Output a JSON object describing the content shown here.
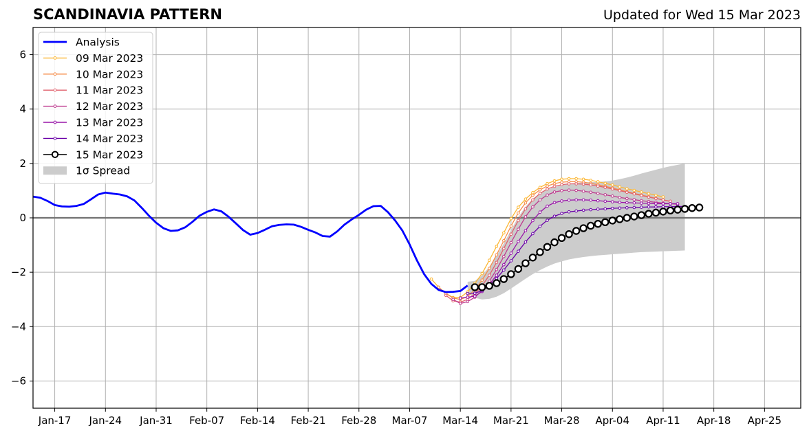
{
  "title": "SCANDINAVIA PATTERN",
  "subtitle": "Updated for Wed 15 Mar 2023",
  "chart_data": {
    "type": "line",
    "title": "SCANDINAVIA PATTERN",
    "subtitle": "Updated for Wed 15 Mar 2023",
    "xlabel": "",
    "ylabel": "",
    "x_axis": "date",
    "xlim": [
      "2023-01-14",
      "2023-04-30"
    ],
    "ylim": [
      -7,
      7
    ],
    "yticks": [
      -6,
      -4,
      -2,
      0,
      2,
      4,
      6
    ],
    "ytick_labels": [
      "−6",
      "−4",
      "−2",
      "0",
      "2",
      "4",
      "6"
    ],
    "xticks": [
      "2023-01-17",
      "2023-01-24",
      "2023-01-31",
      "2023-02-07",
      "2023-02-14",
      "2023-02-21",
      "2023-02-28",
      "2023-03-07",
      "2023-03-14",
      "2023-03-21",
      "2023-03-28",
      "2023-04-04",
      "2023-04-11",
      "2023-04-18",
      "2023-04-25"
    ],
    "xtick_labels": [
      "Jan-17",
      "Jan-24",
      "Jan-31",
      "Feb-07",
      "Feb-14",
      "Feb-21",
      "Feb-28",
      "Mar-07",
      "Mar-14",
      "Mar-21",
      "Mar-28",
      "Apr-04",
      "Apr-11",
      "Apr-18",
      "Apr-25"
    ],
    "grid": true,
    "zero_line": true,
    "legend_position": "upper-left",
    "colors": {
      "analysis": "#0000ff",
      "spread": "#cccccc",
      "f0309": "#fcb733",
      "f0310": "#f58b47",
      "f0311": "#e1606c",
      "f0312": "#be3a8e",
      "f0313": "#9815a8",
      "f0314": "#6a00a8",
      "f0315": "#000000"
    },
    "analysis": {
      "name": "Analysis",
      "x": [
        "2023-01-14",
        "2023-01-15",
        "2023-01-16",
        "2023-01-17",
        "2023-01-18",
        "2023-01-19",
        "2023-01-20",
        "2023-01-21",
        "2023-01-22",
        "2023-01-23",
        "2023-01-24",
        "2023-01-25",
        "2023-01-26",
        "2023-01-27",
        "2023-01-28",
        "2023-01-29",
        "2023-01-30",
        "2023-01-31",
        "2023-02-01",
        "2023-02-02",
        "2023-02-03",
        "2023-02-04",
        "2023-02-05",
        "2023-02-06",
        "2023-02-07",
        "2023-02-08",
        "2023-02-09",
        "2023-02-10",
        "2023-02-11",
        "2023-02-12",
        "2023-02-13",
        "2023-02-14",
        "2023-02-15",
        "2023-02-16",
        "2023-02-17",
        "2023-02-18",
        "2023-02-19",
        "2023-02-20",
        "2023-02-21",
        "2023-02-22",
        "2023-02-23",
        "2023-02-24",
        "2023-02-25",
        "2023-02-26",
        "2023-02-27",
        "2023-02-28",
        "2023-03-01",
        "2023-03-02",
        "2023-03-03",
        "2023-03-04",
        "2023-03-05",
        "2023-03-06",
        "2023-03-07",
        "2023-03-08",
        "2023-03-09",
        "2023-03-10",
        "2023-03-11",
        "2023-03-12",
        "2023-03-13",
        "2023-03-14",
        "2023-03-15"
      ],
      "y": [
        0.78,
        0.74,
        0.62,
        0.47,
        0.42,
        0.41,
        0.44,
        0.51,
        0.68,
        0.86,
        0.93,
        0.89,
        0.86,
        0.79,
        0.64,
        0.37,
        0.08,
        -0.18,
        -0.38,
        -0.48,
        -0.46,
        -0.35,
        -0.15,
        0.08,
        0.22,
        0.31,
        0.24,
        0.04,
        -0.2,
        -0.45,
        -0.62,
        -0.56,
        -0.44,
        -0.31,
        -0.26,
        -0.24,
        -0.25,
        -0.33,
        -0.44,
        -0.54,
        -0.67,
        -0.69,
        -0.5,
        -0.25,
        -0.06,
        0.11,
        0.3,
        0.43,
        0.44,
        0.21,
        -0.1,
        -0.47,
        -0.98,
        -1.56,
        -2.07,
        -2.43,
        -2.65,
        -2.73,
        -2.72,
        -2.69,
        -2.49
      ]
    },
    "spread": {
      "name": "1σ Spread",
      "x": [
        "2023-03-15",
        "2023-03-16",
        "2023-03-17",
        "2023-03-18",
        "2023-03-19",
        "2023-03-20",
        "2023-03-21",
        "2023-03-22",
        "2023-03-23",
        "2023-03-24",
        "2023-03-25",
        "2023-03-26",
        "2023-03-27",
        "2023-03-28",
        "2023-03-29",
        "2023-03-30",
        "2023-03-31",
        "2023-04-01",
        "2023-04-02",
        "2023-04-03",
        "2023-04-04",
        "2023-04-05",
        "2023-04-06",
        "2023-04-07",
        "2023-04-08",
        "2023-04-09",
        "2023-04-10",
        "2023-04-11",
        "2023-04-12",
        "2023-04-13",
        "2023-04-14"
      ],
      "upper": [
        -2.35,
        -2.32,
        -2.12,
        -1.8,
        -1.4,
        -0.94,
        -0.45,
        0.03,
        0.41,
        0.7,
        0.9,
        1.04,
        1.13,
        1.2,
        1.25,
        1.28,
        1.3,
        1.31,
        1.32,
        1.34,
        1.37,
        1.42,
        1.48,
        1.55,
        1.63,
        1.7,
        1.77,
        1.84,
        1.9,
        1.95,
        2.0
      ],
      "lower": [
        -2.78,
        -2.94,
        -3.0,
        -2.98,
        -2.9,
        -2.77,
        -2.6,
        -2.42,
        -2.24,
        -2.07,
        -1.92,
        -1.79,
        -1.68,
        -1.6,
        -1.53,
        -1.48,
        -1.44,
        -1.41,
        -1.38,
        -1.36,
        -1.34,
        -1.32,
        -1.3,
        -1.28,
        -1.26,
        -1.25,
        -1.24,
        -1.23,
        -1.22,
        -1.21,
        -1.2
      ]
    },
    "series": [
      {
        "name": "09 Mar 2023",
        "key": "f0309",
        "x": [
          "2023-03-10",
          "2023-03-11",
          "2023-03-12",
          "2023-03-13",
          "2023-03-14",
          "2023-03-15",
          "2023-03-16",
          "2023-03-17",
          "2023-03-18",
          "2023-03-19",
          "2023-03-20",
          "2023-03-21",
          "2023-03-22",
          "2023-03-23",
          "2023-03-24",
          "2023-03-25",
          "2023-03-26",
          "2023-03-27",
          "2023-03-28",
          "2023-03-29",
          "2023-03-30",
          "2023-03-31",
          "2023-04-01",
          "2023-04-02",
          "2023-04-03",
          "2023-04-04",
          "2023-04-05",
          "2023-04-06",
          "2023-04-07",
          "2023-04-08",
          "2023-04-09",
          "2023-04-10",
          "2023-04-11"
        ],
        "y": [
          -2.25,
          -2.55,
          -2.78,
          -2.93,
          -2.93,
          -2.72,
          -2.41,
          -2.05,
          -1.56,
          -1.05,
          -0.55,
          -0.03,
          0.39,
          0.69,
          0.93,
          1.12,
          1.26,
          1.36,
          1.42,
          1.44,
          1.44,
          1.42,
          1.38,
          1.33,
          1.27,
          1.21,
          1.14,
          1.07,
          1.01,
          0.95,
          0.89,
          0.83,
          0.77
        ]
      },
      {
        "name": "10 Mar 2023",
        "key": "f0310",
        "x": [
          "2023-03-11",
          "2023-03-12",
          "2023-03-13",
          "2023-03-14",
          "2023-03-15",
          "2023-03-16",
          "2023-03-17",
          "2023-03-18",
          "2023-03-19",
          "2023-03-20",
          "2023-03-21",
          "2023-03-22",
          "2023-03-23",
          "2023-03-24",
          "2023-03-25",
          "2023-03-26",
          "2023-03-27",
          "2023-03-28",
          "2023-03-29",
          "2023-03-30",
          "2023-03-31",
          "2023-04-01",
          "2023-04-02",
          "2023-04-03",
          "2023-04-04",
          "2023-04-05",
          "2023-04-06",
          "2023-04-07",
          "2023-04-08",
          "2023-04-09",
          "2023-04-10",
          "2023-04-11",
          "2023-04-12"
        ],
        "y": [
          -2.55,
          -2.78,
          -2.95,
          -3.0,
          -2.9,
          -2.64,
          -2.29,
          -1.86,
          -1.36,
          -0.84,
          -0.3,
          0.18,
          0.55,
          0.83,
          1.03,
          1.17,
          1.26,
          1.31,
          1.33,
          1.33,
          1.31,
          1.27,
          1.22,
          1.16,
          1.1,
          1.03,
          0.96,
          0.9,
          0.84,
          0.78,
          0.72,
          0.66,
          0.6
        ]
      },
      {
        "name": "11 Mar 2023",
        "key": "f0311",
        "x": [
          "2023-03-12",
          "2023-03-13",
          "2023-03-14",
          "2023-03-15",
          "2023-03-16",
          "2023-03-17",
          "2023-03-18",
          "2023-03-19",
          "2023-03-20",
          "2023-03-21",
          "2023-03-22",
          "2023-03-23",
          "2023-03-24",
          "2023-03-25",
          "2023-03-26",
          "2023-03-27",
          "2023-03-28",
          "2023-03-29",
          "2023-03-30",
          "2023-03-31",
          "2023-04-01",
          "2023-04-02",
          "2023-04-03",
          "2023-04-04",
          "2023-04-05",
          "2023-04-06",
          "2023-04-07",
          "2023-04-08",
          "2023-04-09",
          "2023-04-10",
          "2023-04-11",
          "2023-04-12"
        ],
        "y": [
          -2.85,
          -3.05,
          -3.1,
          -3.0,
          -2.79,
          -2.5,
          -2.11,
          -1.64,
          -1.13,
          -0.6,
          -0.1,
          0.33,
          0.66,
          0.9,
          1.06,
          1.16,
          1.22,
          1.25,
          1.25,
          1.24,
          1.21,
          1.17,
          1.12,
          1.06,
          1.0,
          0.94,
          0.88,
          0.82,
          0.76,
          0.71,
          0.66,
          0.61
        ]
      },
      {
        "name": "12 Mar 2023",
        "key": "f0312",
        "x": [
          "2023-03-13",
          "2023-03-14",
          "2023-03-15",
          "2023-03-16",
          "2023-03-17",
          "2023-03-18",
          "2023-03-19",
          "2023-03-20",
          "2023-03-21",
          "2023-03-22",
          "2023-03-23",
          "2023-03-24",
          "2023-03-25",
          "2023-03-26",
          "2023-03-27",
          "2023-03-28",
          "2023-03-29",
          "2023-03-30",
          "2023-03-31",
          "2023-04-01",
          "2023-04-02",
          "2023-04-03",
          "2023-04-04",
          "2023-04-05",
          "2023-04-06",
          "2023-04-07",
          "2023-04-08",
          "2023-04-09",
          "2023-04-10",
          "2023-04-11",
          "2023-04-12",
          "2023-04-13"
        ],
        "y": [
          -3.0,
          -3.15,
          -3.08,
          -2.92,
          -2.67,
          -2.33,
          -1.9,
          -1.42,
          -0.91,
          -0.42,
          0.04,
          0.4,
          0.66,
          0.84,
          0.95,
          1.0,
          1.02,
          1.01,
          0.98,
          0.94,
          0.9,
          0.85,
          0.8,
          0.75,
          0.71,
          0.67,
          0.63,
          0.6,
          0.57,
          0.54,
          0.52,
          0.5
        ]
      },
      {
        "name": "13 Mar 2023",
        "key": "f0313",
        "x": [
          "2023-03-14",
          "2023-03-15",
          "2023-03-16",
          "2023-03-17",
          "2023-03-18",
          "2023-03-19",
          "2023-03-20",
          "2023-03-21",
          "2023-03-22",
          "2023-03-23",
          "2023-03-24",
          "2023-03-25",
          "2023-03-26",
          "2023-03-27",
          "2023-03-28",
          "2023-03-29",
          "2023-03-30",
          "2023-03-31",
          "2023-04-01",
          "2023-04-02",
          "2023-04-03",
          "2023-04-04",
          "2023-04-05",
          "2023-04-06",
          "2023-04-07",
          "2023-04-08",
          "2023-04-09",
          "2023-04-10",
          "2023-04-11",
          "2023-04-12",
          "2023-04-13"
        ],
        "y": [
          -2.95,
          -2.92,
          -2.88,
          -2.71,
          -2.45,
          -2.11,
          -1.72,
          -1.3,
          -0.87,
          -0.47,
          -0.1,
          0.21,
          0.43,
          0.56,
          0.62,
          0.65,
          0.66,
          0.66,
          0.65,
          0.63,
          0.61,
          0.59,
          0.57,
          0.56,
          0.55,
          0.54,
          0.53,
          0.52,
          0.52,
          0.52,
          0.52
        ]
      },
      {
        "name": "14 Mar 2023",
        "key": "f0314",
        "x": [
          "2023-03-15",
          "2023-03-16",
          "2023-03-17",
          "2023-03-18",
          "2023-03-19",
          "2023-03-20",
          "2023-03-21",
          "2023-03-22",
          "2023-03-23",
          "2023-03-24",
          "2023-03-25",
          "2023-03-26",
          "2023-03-27",
          "2023-03-28",
          "2023-03-29",
          "2023-03-30",
          "2023-03-31",
          "2023-04-01",
          "2023-04-02",
          "2023-04-03",
          "2023-04-04",
          "2023-04-05",
          "2023-04-06",
          "2023-04-07",
          "2023-04-08",
          "2023-04-09",
          "2023-04-10",
          "2023-04-11",
          "2023-04-12",
          "2023-04-13",
          "2023-04-14"
        ],
        "y": [
          -2.78,
          -2.77,
          -2.68,
          -2.49,
          -2.23,
          -1.92,
          -1.58,
          -1.23,
          -0.89,
          -0.58,
          -0.31,
          -0.09,
          0.06,
          0.16,
          0.22,
          0.25,
          0.28,
          0.3,
          0.32,
          0.33,
          0.35,
          0.36,
          0.37,
          0.38,
          0.39,
          0.4,
          0.4,
          0.41,
          0.41,
          0.42,
          0.42
        ]
      },
      {
        "name": "15 Mar 2023",
        "key": "f0315",
        "x": [
          "2023-03-16",
          "2023-03-17",
          "2023-03-18",
          "2023-03-19",
          "2023-03-20",
          "2023-03-21",
          "2023-03-22",
          "2023-03-23",
          "2023-03-24",
          "2023-03-25",
          "2023-03-26",
          "2023-03-27",
          "2023-03-28",
          "2023-03-29",
          "2023-03-30",
          "2023-03-31",
          "2023-04-01",
          "2023-04-02",
          "2023-04-03",
          "2023-04-04",
          "2023-04-05",
          "2023-04-06",
          "2023-04-07",
          "2023-04-08",
          "2023-04-09",
          "2023-04-10",
          "2023-04-11",
          "2023-04-12",
          "2023-04-13",
          "2023-04-14",
          "2023-04-15",
          "2023-04-16"
        ],
        "y": [
          -2.55,
          -2.55,
          -2.5,
          -2.4,
          -2.25,
          -2.07,
          -1.88,
          -1.67,
          -1.46,
          -1.26,
          -1.07,
          -0.9,
          -0.74,
          -0.6,
          -0.48,
          -0.38,
          -0.29,
          -0.22,
          -0.16,
          -0.1,
          -0.05,
          0.0,
          0.05,
          0.1,
          0.15,
          0.19,
          0.23,
          0.27,
          0.3,
          0.33,
          0.36,
          0.38
        ]
      }
    ],
    "legend": [
      "Analysis",
      "09 Mar 2023",
      "10 Mar 2023",
      "11 Mar 2023",
      "12 Mar 2023",
      "13 Mar 2023",
      "14 Mar 2023",
      "15 Mar 2023",
      "1σ Spread"
    ]
  }
}
